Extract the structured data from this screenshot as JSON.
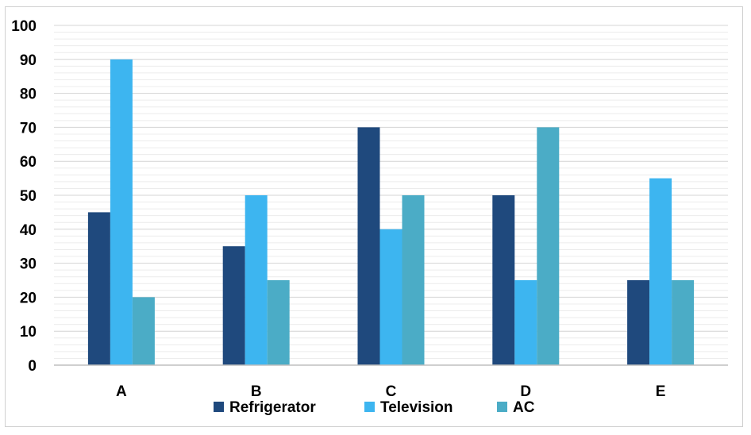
{
  "chart_data": {
    "type": "bar",
    "title": "",
    "xlabel": "",
    "ylabel": "",
    "categories": [
      "A",
      "B",
      "C",
      "D",
      "E"
    ],
    "series": [
      {
        "name": "Refrigerator",
        "values": [
          45,
          35,
          70,
          50,
          25
        ],
        "color": "#1f497d"
      },
      {
        "name": "Television",
        "values": [
          90,
          50,
          40,
          25,
          55
        ],
        "color": "#3db5f0"
      },
      {
        "name": "AC",
        "values": [
          20,
          25,
          50,
          70,
          25
        ],
        "color": "#4bacc6"
      }
    ],
    "ylim": [
      0,
      100
    ],
    "yticks": [
      0,
      10,
      20,
      30,
      40,
      50,
      60,
      70,
      80,
      90,
      100
    ],
    "minor_gridlines": true,
    "grid": true,
    "legend_position": "bottom"
  }
}
